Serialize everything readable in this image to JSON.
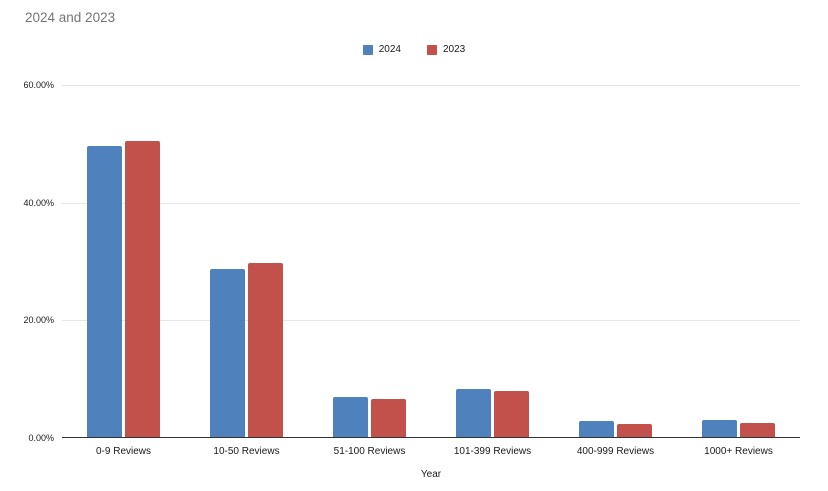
{
  "title": "2024 and 2023",
  "chart_data": {
    "type": "bar",
    "title": "2024 and 2023",
    "categories": [
      "0-9 Reviews",
      "10-50 Reviews",
      "51-100 Reviews",
      "101-399 Reviews",
      "400-999 Reviews",
      "1000+ Reviews"
    ],
    "series": [
      {
        "name": "2024",
        "color": "#4f81bd",
        "values": [
          49.7,
          28.8,
          7.0,
          8.4,
          2.9,
          3.0
        ]
      },
      {
        "name": "2023",
        "color": "#c2504b",
        "values": [
          50.4,
          29.7,
          6.7,
          8.0,
          2.4,
          2.5
        ]
      }
    ],
    "xlabel": "Year",
    "ylabel": "",
    "ylim": [
      0,
      60
    ],
    "yticks": [
      0,
      20,
      40,
      60
    ],
    "ytick_labels": [
      "0.00%",
      "20.00%",
      "40.00%",
      "60.00%"
    ],
    "grid": true,
    "legend_position": "top-center",
    "value_format": "percent"
  }
}
